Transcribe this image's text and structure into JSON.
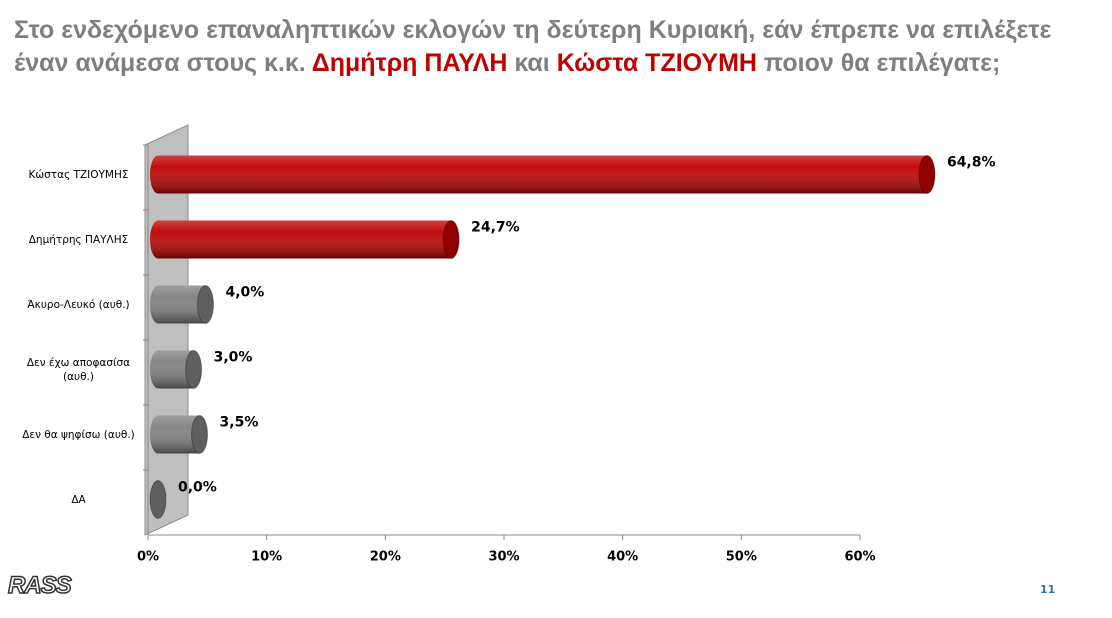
{
  "chart_data": {
    "type": "bar",
    "orientation": "horizontal",
    "title": [
      "Στο ενδεχόμενο επαναληπτικών εκλογών τη δεύτερη Κυριακή, εάν έπρεπε να επιλέξετε έναν ανάμεσα στους κ.κ. ",
      "Δημήτρη ΠΑΥΛΗ",
      " και ",
      "Κώστα ΤΖΙΟΥΜΗ",
      " ποιον θα επιλέγατε;"
    ],
    "title_color": "#7f7f7f",
    "title_highlight_color": "#c00000",
    "title_highlight_parts": [
      1,
      3
    ],
    "categories": [
      "Κώστας ΤΖΙΟΥΜΗΣ",
      "Δημήτρης ΠΑΥΛΗΣ",
      "Άκυρο-Λευκό (αυθ.)",
      "Δεν έχω αποφασίσα (αυθ.)",
      "Δεν θα ψηφίσω (αυθ.)",
      "ΔΑ"
    ],
    "values": [
      64.8,
      24.7,
      4.0,
      3.0,
      3.5,
      0.0
    ],
    "value_labels": [
      "64,8%",
      "24,7%",
      "4,0%",
      "3,0%",
      "3,5%",
      "0,0%"
    ],
    "colors": [
      "#c00000",
      "#c00000",
      "#7f7f7f",
      "#7f7f7f",
      "#7f7f7f",
      "#7f7f7f"
    ],
    "xlim": [
      0,
      60
    ],
    "xticks": [
      {
        "value": 0,
        "label": "0%"
      },
      {
        "value": 10,
        "label": "10%"
      },
      {
        "value": 20,
        "label": "20%"
      },
      {
        "value": 30,
        "label": "30%"
      },
      {
        "value": 40,
        "label": "40%"
      },
      {
        "value": 50,
        "label": "50%"
      },
      {
        "value": 60,
        "label": "60%"
      }
    ]
  },
  "logo": "RASS",
  "page_number": "11"
}
